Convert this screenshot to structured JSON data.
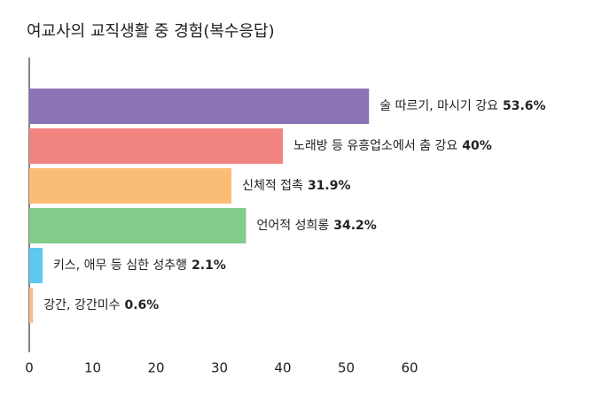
{
  "chart_data": {
    "type": "hbar",
    "title": "여교사의 교직생활 중 경험(복수응답)",
    "categories": [
      "술 따르기, 마시기 강요",
      "노래방 등 유흥업소에서 춤 강요",
      "신체적 접촉",
      "언어적 성희롱",
      "키스, 애무 등 심한 성추행",
      "강간, 강간미수"
    ],
    "values": [
      53.6,
      40,
      31.9,
      34.2,
      2.1,
      0.6
    ],
    "value_labels": [
      "53.6%",
      "40%",
      "31.9%",
      "34.2%",
      "2.1%",
      "0.6%"
    ],
    "colors": [
      "#8b74b6",
      "#f28482",
      "#fbbd75",
      "#82cc8c",
      "#5ec9f0",
      "#f9c08e"
    ],
    "xlim": [
      0,
      60
    ],
    "xticks": [
      0,
      10,
      20,
      30,
      40,
      50,
      60
    ],
    "grid": false
  }
}
